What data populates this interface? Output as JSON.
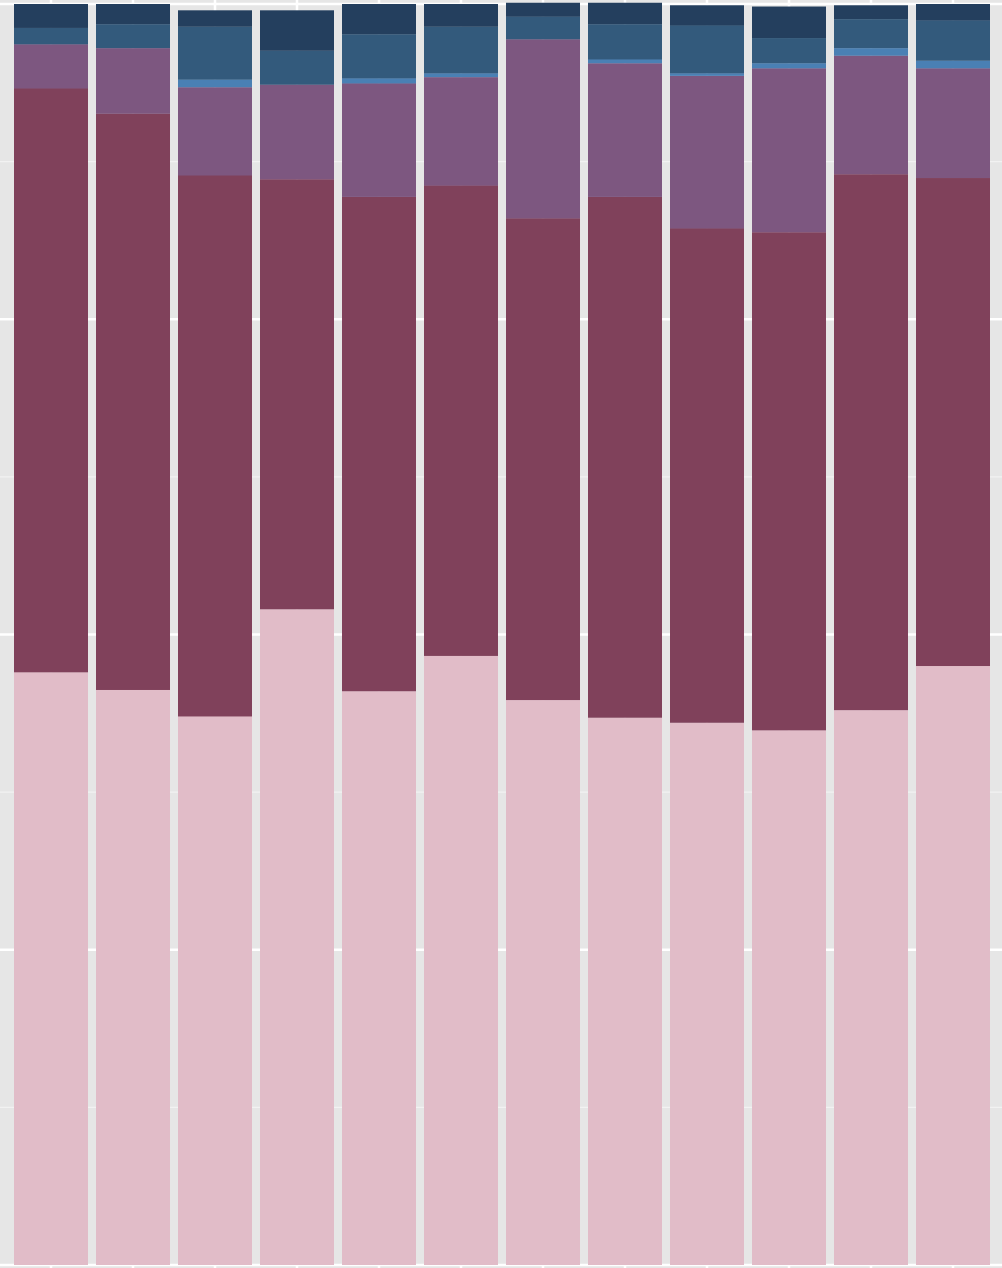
{
  "chart_data": {
    "type": "bar",
    "stacked": true,
    "normalized": true,
    "ylim": [
      0,
      1
    ],
    "grid": true,
    "categories": [
      "",
      "",
      "",
      "",
      "",
      "",
      "",
      "",
      "",
      "",
      "",
      ""
    ],
    "series": [
      {
        "color": "#e1bcc8",
        "values": [
          0.47,
          0.456,
          0.435,
          0.52,
          0.455,
          0.483,
          0.448,
          0.434,
          0.43,
          0.424,
          0.44,
          0.475
        ]
      },
      {
        "color": "#80415b",
        "values": [
          0.463,
          0.457,
          0.429,
          0.341,
          0.392,
          0.373,
          0.382,
          0.413,
          0.392,
          0.395,
          0.425,
          0.387
        ]
      },
      {
        "color": "#7d5780",
        "values": [
          0.035,
          0.052,
          0.07,
          0.075,
          0.09,
          0.086,
          0.142,
          0.106,
          0.121,
          0.13,
          0.094,
          0.087
        ]
      },
      {
        "color": "#4a80b4",
        "values": [
          0.0,
          0.0,
          0.006,
          0.0,
          0.004,
          0.003,
          0.0,
          0.003,
          0.002,
          0.004,
          0.006,
          0.006
        ]
      },
      {
        "color": "#335a7c",
        "values": [
          0.013,
          0.019,
          0.042,
          0.027,
          0.035,
          0.037,
          0.018,
          0.028,
          0.038,
          0.02,
          0.023,
          0.032
        ]
      },
      {
        "color": "#243f5e",
        "values": [
          0.019,
          0.016,
          0.013,
          0.032,
          0.024,
          0.018,
          0.011,
          0.017,
          0.016,
          0.025,
          0.011,
          0.013
        ]
      }
    ]
  }
}
